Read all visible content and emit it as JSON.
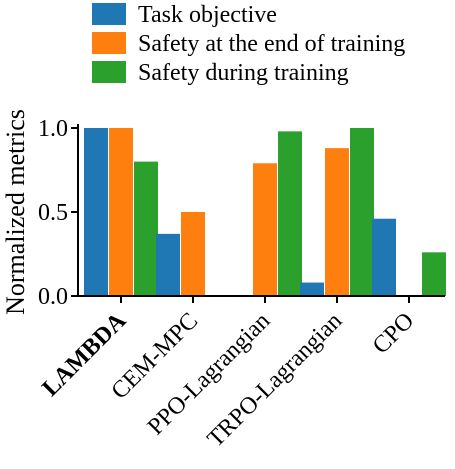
{
  "chart_data": {
    "type": "bar",
    "categories": [
      "LAMBDA",
      "CEM-MPC",
      "PPO-Lagrangian",
      "TRPO-Lagrangian",
      "CPO"
    ],
    "category_bold": [
      true,
      false,
      false,
      false,
      false
    ],
    "ylabel": "Normalized metrics",
    "xlabel": "",
    "title": "",
    "ylim": [
      0,
      1.0
    ],
    "yticks": [
      0.0,
      0.5,
      1.0
    ],
    "ytick_labels": [
      "0.0",
      "0.5",
      "1.0"
    ],
    "grid": false,
    "legend_position": "top",
    "series": [
      {
        "name": "Task objective",
        "color": "#1f77b4",
        "values": [
          1.0,
          0.37,
          0.0,
          0.08,
          0.46
        ]
      },
      {
        "name": "Safety at the end of training",
        "color": "#ff7f0e",
        "values": [
          1.0,
          0.5,
          0.79,
          0.88,
          0.0
        ]
      },
      {
        "name": "Safety during training",
        "color": "#2ca02c",
        "values": [
          0.8,
          0.0,
          0.98,
          1.0,
          0.26
        ]
      }
    ]
  }
}
